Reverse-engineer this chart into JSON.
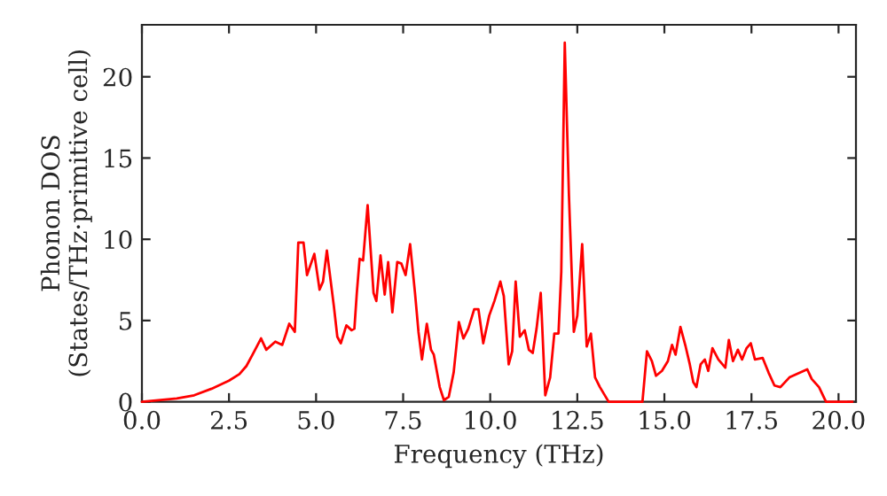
{
  "chart_data": {
    "type": "line",
    "xlabel": "Frequency (THz)",
    "ylabel": "Phonon DOS\n(States/THz·primitive cell)",
    "xlim": [
      0,
      20.5
    ],
    "ylim": [
      0,
      23.2
    ],
    "xticks": [
      {
        "value": 0,
        "label": "0.0"
      },
      {
        "value": 2.5,
        "label": "2.5"
      },
      {
        "value": 5,
        "label": "5.0"
      },
      {
        "value": 7.5,
        "label": "7.5"
      },
      {
        "value": 10,
        "label": "10.0"
      },
      {
        "value": 12.5,
        "label": "12.5"
      },
      {
        "value": 15,
        "label": "15.0"
      },
      {
        "value": 17.5,
        "label": "17.5"
      },
      {
        "value": 20,
        "label": "20.0"
      }
    ],
    "yticks": [
      0,
      5,
      10,
      15,
      20
    ],
    "grid": false,
    "legend": false,
    "marker": "none",
    "line_style": "solid",
    "series": [
      {
        "color": "#ff0000",
        "x": [
          0,
          1.0,
          1.5,
          2.0,
          2.5,
          2.8,
          3.0,
          3.2,
          3.42,
          3.57,
          3.83,
          4.03,
          4.23,
          4.39,
          4.49,
          4.64,
          4.74,
          4.95,
          5.1,
          5.2,
          5.31,
          5.51,
          5.61,
          5.71,
          5.87,
          6.02,
          6.1,
          6.17,
          6.25,
          6.35,
          6.48,
          6.65,
          6.73,
          6.85,
          6.97,
          7.07,
          7.19,
          7.33,
          7.45,
          7.57,
          7.7,
          7.84,
          7.94,
          8.04,
          8.18,
          8.3,
          8.38,
          8.55,
          8.67,
          8.81,
          8.95,
          9.1,
          9.23,
          9.37,
          9.54,
          9.66,
          9.8,
          9.97,
          10.12,
          10.29,
          10.39,
          10.53,
          10.63,
          10.73,
          10.85,
          10.99,
          11.11,
          11.22,
          11.33,
          11.45,
          11.58,
          11.72,
          11.84,
          11.96,
          12.04,
          12.14,
          12.26,
          12.4,
          12.5,
          12.64,
          12.77,
          12.89,
          13.01,
          13.15,
          13.4,
          14.37,
          14.5,
          14.64,
          14.76,
          14.93,
          15.1,
          15.22,
          15.32,
          15.46,
          15.61,
          15.73,
          15.83,
          15.92,
          16.04,
          16.16,
          16.26,
          16.38,
          16.55,
          16.75,
          16.85,
          16.97,
          17.11,
          17.23,
          17.36,
          17.48,
          17.6,
          17.82,
          17.99,
          18.16,
          18.33,
          18.59,
          19.1,
          19.23,
          19.44,
          19.64,
          20.4
        ],
        "values": [
          0,
          0.2,
          0.4,
          0.8,
          1.3,
          1.7,
          2.2,
          3.0,
          3.9,
          3.2,
          3.7,
          3.5,
          4.8,
          4.3,
          9.8,
          9.8,
          7.8,
          9.1,
          6.9,
          7.4,
          9.3,
          5.9,
          4.0,
          3.6,
          4.7,
          4.4,
          4.5,
          6.7,
          8.8,
          8.7,
          12.1,
          6.7,
          6.2,
          9.0,
          6.6,
          8.6,
          5.5,
          8.6,
          8.5,
          7.8,
          9.7,
          6.7,
          4.3,
          2.6,
          4.8,
          3.2,
          2.9,
          0.9,
          0.1,
          0.3,
          1.8,
          4.9,
          3.9,
          4.5,
          5.7,
          5.7,
          3.6,
          5.3,
          6.2,
          7.4,
          6.5,
          2.3,
          3.1,
          7.4,
          4.0,
          4.4,
          3.2,
          3.0,
          4.5,
          6.7,
          0.4,
          1.5,
          4.2,
          4.2,
          8.0,
          22.1,
          12.7,
          4.3,
          5.3,
          9.7,
          3.4,
          4.2,
          1.5,
          0.9,
          0,
          0,
          3.1,
          2.5,
          1.6,
          1.9,
          2.5,
          3.5,
          2.9,
          4.6,
          3.4,
          2.3,
          1.2,
          0.9,
          2.3,
          2.6,
          1.9,
          3.3,
          2.6,
          2.1,
          3.8,
          2.5,
          3.2,
          2.6,
          3.3,
          3.6,
          2.6,
          2.7,
          1.8,
          1.0,
          0.9,
          1.5,
          2.0,
          1.4,
          0.9,
          0,
          0
        ]
      }
    ]
  }
}
